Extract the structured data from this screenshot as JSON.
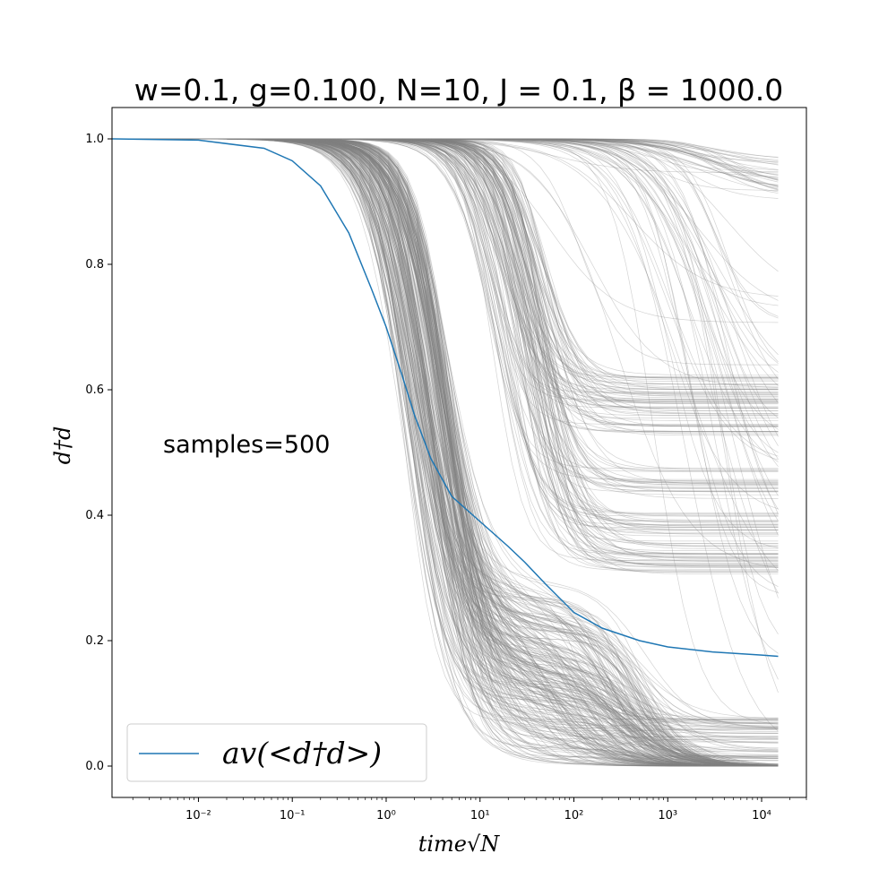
{
  "chart_data": {
    "type": "line",
    "title": "w=0.1, g=0.100, N=10, J = 0.1, β = 1000.0",
    "xlabel": "time√N",
    "ylabel": "d†d",
    "xscale": "log",
    "xlim": [
      0.0012,
      30000
    ],
    "ylim": [
      -0.05,
      1.05
    ],
    "x_ticks": [
      {
        "value": 0.01,
        "label": "10⁻²"
      },
      {
        "value": 0.1,
        "label": "10⁻¹"
      },
      {
        "value": 1,
        "label": "10⁰"
      },
      {
        "value": 10,
        "label": "10¹"
      },
      {
        "value": 100,
        "label": "10²"
      },
      {
        "value": 1000,
        "label": "10³"
      },
      {
        "value": 10000,
        "label": "10⁴"
      }
    ],
    "y_ticks": [
      {
        "value": 0.0,
        "label": "0.0"
      },
      {
        "value": 0.2,
        "label": "0.2"
      },
      {
        "value": 0.4,
        "label": "0.4"
      },
      {
        "value": 0.6,
        "label": "0.6"
      },
      {
        "value": 0.8,
        "label": "0.8"
      },
      {
        "value": 1.0,
        "label": "1.0"
      }
    ],
    "annotation": "samples=500",
    "legend": {
      "placement": "lower-left",
      "entries": [
        {
          "label": "av(<d†d>)",
          "color": "#1f77b4"
        }
      ]
    },
    "grid": false,
    "average_series": {
      "name": "av(<d†d>)",
      "color": "#1f77b4",
      "points": [
        [
          0.0012,
          1.0
        ],
        [
          0.01,
          0.998
        ],
        [
          0.05,
          0.985
        ],
        [
          0.1,
          0.965
        ],
        [
          0.2,
          0.925
        ],
        [
          0.4,
          0.85
        ],
        [
          0.7,
          0.76
        ],
        [
          1.0,
          0.7
        ],
        [
          1.5,
          0.62
        ],
        [
          2.0,
          0.56
        ],
        [
          3.0,
          0.49
        ],
        [
          5.0,
          0.43
        ],
        [
          10.0,
          0.39
        ],
        [
          20.0,
          0.35
        ],
        [
          30.0,
          0.325
        ],
        [
          50.0,
          0.29
        ],
        [
          100.0,
          0.245
        ],
        [
          200.0,
          0.22
        ],
        [
          500.0,
          0.2
        ],
        [
          1000.0,
          0.19
        ],
        [
          3000.0,
          0.182
        ],
        [
          10000.0,
          0.177
        ],
        [
          15000.0,
          0.175
        ]
      ]
    },
    "sample_curves": {
      "count": 500,
      "color": "#808080",
      "x_end": 15000,
      "start_value": 1.0,
      "plateau_levels": [
        0.0,
        0.33,
        0.38,
        0.45,
        0.55,
        0.6,
        0.93,
        0.96
      ]
    }
  }
}
